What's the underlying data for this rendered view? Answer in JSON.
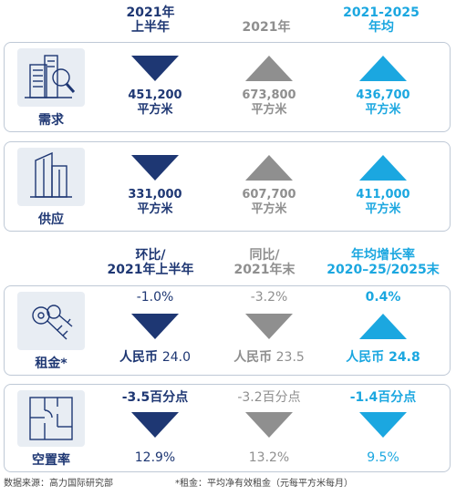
{
  "top_headers": {
    "col1": [
      "2021年",
      "上半年"
    ],
    "col2": [
      "2021年"
    ],
    "col3": [
      "2021-2025",
      "年均"
    ]
  },
  "demand": {
    "label": "需求",
    "values": [
      {
        "number": "451,200",
        "unit": "平方米",
        "direction": "down"
      },
      {
        "number": "673,800",
        "unit": "平方米",
        "direction": "up"
      },
      {
        "number": "436,700",
        "unit": "平方米",
        "direction": "up"
      }
    ]
  },
  "supply": {
    "label": "供应",
    "values": [
      {
        "number": "331,000",
        "unit": "平方米",
        "direction": "down"
      },
      {
        "number": "607,700",
        "unit": "平方米",
        "direction": "up"
      },
      {
        "number": "411,000",
        "unit": "平方米",
        "direction": "up"
      }
    ]
  },
  "bottom_headers": {
    "col1": [
      "环比/",
      "2021年上半年"
    ],
    "col2": [
      "同比/",
      "2021年末"
    ],
    "col3": [
      "年均增长率",
      "2020–25/2025末"
    ]
  },
  "rent": {
    "label": "租金*",
    "values": [
      {
        "change": "-1.0%",
        "value_label": "人民币",
        "value": "24.0",
        "direction": "down"
      },
      {
        "change": "-3.2%",
        "value_label": "人民币",
        "value": "23.5",
        "direction": "down"
      },
      {
        "change": "0.4%",
        "value_label": "人民币",
        "value": "24.8",
        "direction": "up"
      }
    ]
  },
  "vacancy": {
    "label": "空置率",
    "values": [
      {
        "change": "-3.5百分点",
        "value": "12.9%",
        "direction": "down"
      },
      {
        "change": "-3.2百分点",
        "value": "13.2%",
        "direction": "down"
      },
      {
        "change": "-1.4百分点",
        "value": "9.5%",
        "direction": "down"
      }
    ]
  },
  "footer": {
    "source": "数据来源：高力国际研究部",
    "note": "*租金：平均净有效租金（元每平方米每月）"
  },
  "colors": {
    "navy": "#1e3773",
    "grey": "#8f8f8f",
    "cyan": "#1ba7e0"
  }
}
